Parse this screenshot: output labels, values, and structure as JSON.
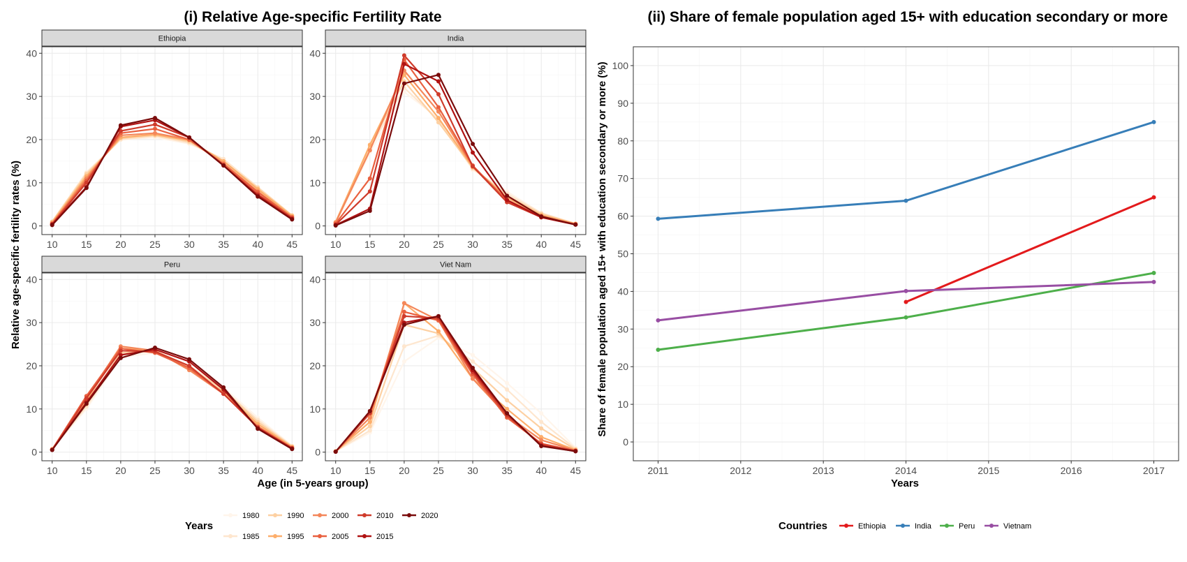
{
  "left": {
    "title": "(i) Relative Age-specific Fertility Rate",
    "xlabel": "Age (in 5-years group)",
    "ylabel": "Relative age-specific fertility rates (%)",
    "legend_title": "Years"
  },
  "right": {
    "title": "(ii) Share of female population aged 15+ with education secondary or more",
    "xlabel": "Years",
    "ylabel": "Share of female population aged 15+ with education secondary or more (%)",
    "legend_title": "Countries"
  },
  "chart_data": [
    {
      "type": "line",
      "facets": [
        "Ethiopia",
        "India",
        "Peru",
        "Viet Nam"
      ],
      "x": [
        10,
        15,
        20,
        25,
        30,
        35,
        40,
        45
      ],
      "xticks": [
        10,
        15,
        20,
        25,
        30,
        35,
        40,
        45
      ],
      "ylim": [
        -2,
        41.5
      ],
      "yticks": [
        0,
        10,
        20,
        30,
        40
      ],
      "grid": true,
      "legend_position": "bottom",
      "series_names": [
        "1980",
        "1985",
        "1990",
        "1995",
        "2000",
        "2005",
        "2010",
        "2015",
        "2020"
      ],
      "series_colors": [
        "#fff5eb",
        "#fee6ce",
        "#fdd0a2",
        "#fdae6b",
        "#f4875a",
        "#e9603f",
        "#cf3b2b",
        "#b01313",
        "#7a0c0c"
      ],
      "data": {
        "Ethiopia": [
          [
            1.0,
            12.5,
            20.0,
            20.5,
            19.0,
            15.5,
            9.0,
            2.5
          ],
          [
            1.0,
            12.3,
            20.0,
            20.8,
            19.2,
            15.5,
            9.0,
            2.5
          ],
          [
            1.0,
            12.0,
            20.3,
            21.0,
            19.5,
            15.0,
            8.8,
            2.4
          ],
          [
            0.8,
            11.5,
            20.5,
            21.2,
            19.8,
            15.0,
            8.5,
            2.3
          ],
          [
            0.6,
            11.0,
            21.0,
            21.5,
            20.0,
            14.5,
            8.0,
            2.0
          ],
          [
            0.5,
            10.5,
            21.5,
            22.5,
            20.0,
            14.3,
            7.8,
            2.0
          ],
          [
            0.4,
            10.0,
            22.0,
            23.5,
            20.5,
            14.0,
            7.3,
            1.8
          ],
          [
            0.3,
            9.0,
            23.0,
            24.5,
            20.5,
            14.0,
            7.0,
            1.6
          ],
          [
            0.2,
            8.8,
            23.3,
            25.0,
            20.5,
            14.0,
            6.8,
            1.5
          ]
        ],
        "India": [
          [
            0.5,
            17.0,
            31.0,
            25.0,
            13.0,
            8.0,
            3.0,
            0.6
          ],
          [
            0.6,
            18.0,
            32.0,
            24.5,
            13.2,
            7.5,
            3.0,
            0.5
          ],
          [
            0.8,
            18.5,
            33.5,
            24.0,
            13.5,
            7.0,
            2.8,
            0.5
          ],
          [
            0.9,
            18.8,
            35.0,
            25.0,
            13.6,
            6.5,
            2.5,
            0.5
          ],
          [
            0.8,
            17.5,
            36.0,
            26.5,
            13.8,
            6.0,
            2.3,
            0.4
          ],
          [
            0.5,
            11.0,
            38.5,
            27.5,
            14.0,
            5.8,
            2.0,
            0.4
          ],
          [
            0.3,
            8.0,
            39.5,
            30.5,
            13.8,
            5.5,
            2.0,
            0.3
          ],
          [
            0.2,
            4.0,
            37.5,
            33.5,
            17.0,
            6.0,
            2.0,
            0.3
          ],
          [
            0.1,
            3.5,
            33.0,
            35.0,
            19.0,
            7.0,
            2.2,
            0.3
          ]
        ],
        "Peru": [
          [
            0.8,
            10.0,
            22.0,
            23.0,
            20.0,
            15.0,
            8.0,
            1.5
          ],
          [
            0.8,
            10.5,
            22.5,
            23.5,
            20.0,
            14.5,
            7.5,
            1.4
          ],
          [
            0.7,
            11.0,
            23.0,
            23.5,
            19.5,
            14.5,
            7.0,
            1.3
          ],
          [
            0.6,
            12.0,
            24.0,
            23.5,
            19.0,
            14.0,
            6.5,
            1.2
          ],
          [
            0.6,
            12.5,
            24.5,
            23.5,
            19.0,
            13.5,
            6.0,
            1.0
          ],
          [
            0.6,
            13.0,
            24.0,
            23.0,
            19.5,
            13.5,
            5.8,
            1.0
          ],
          [
            0.5,
            12.5,
            23.5,
            23.3,
            20.0,
            13.5,
            5.7,
            0.9
          ],
          [
            0.5,
            11.5,
            22.5,
            23.8,
            21.0,
            14.5,
            5.5,
            0.8
          ],
          [
            0.5,
            11.2,
            21.8,
            24.2,
            21.5,
            15.0,
            5.4,
            0.7
          ]
        ],
        "Viet Nam": [
          [
            0.2,
            4.5,
            21.0,
            26.5,
            22.5,
            16.0,
            9.0,
            1.0
          ],
          [
            0.2,
            5.0,
            24.5,
            27.0,
            21.0,
            14.5,
            7.0,
            0.8
          ],
          [
            0.2,
            6.0,
            29.5,
            27.5,
            19.5,
            12.0,
            5.5,
            0.6
          ],
          [
            0.2,
            7.0,
            34.5,
            28.0,
            17.0,
            10.0,
            3.5,
            0.5
          ],
          [
            0.1,
            8.0,
            34.5,
            30.5,
            17.0,
            8.5,
            2.8,
            0.4
          ],
          [
            0.1,
            9.0,
            32.5,
            30.5,
            18.0,
            8.0,
            2.0,
            0.3
          ],
          [
            0.1,
            9.0,
            31.5,
            31.0,
            18.5,
            8.5,
            1.8,
            0.3
          ],
          [
            0.1,
            9.5,
            30.0,
            31.5,
            19.0,
            9.0,
            1.5,
            0.2
          ],
          [
            0.1,
            9.5,
            29.5,
            31.5,
            19.5,
            9.0,
            1.4,
            0.2
          ]
        ]
      }
    },
    {
      "type": "line",
      "x": [
        2011,
        2014,
        2017
      ],
      "xticks": [
        2011,
        2012,
        2013,
        2014,
        2015,
        2016,
        2017
      ],
      "ylim": [
        -5,
        105
      ],
      "yticks": [
        0,
        10,
        20,
        30,
        40,
        50,
        60,
        70,
        80,
        90,
        100
      ],
      "grid": true,
      "legend_position": "bottom",
      "series": [
        {
          "name": "Ethiopia",
          "color": "#e31a1c",
          "values": [
            null,
            37.2,
            65.0
          ]
        },
        {
          "name": "India",
          "color": "#377eb8",
          "values": [
            59.3,
            64.1,
            85.0
          ]
        },
        {
          "name": "Peru",
          "color": "#4daf4a",
          "values": [
            24.5,
            33.1,
            44.9
          ]
        },
        {
          "name": "Vietnam",
          "color": "#984ea3",
          "values": [
            32.3,
            40.1,
            42.5
          ]
        }
      ]
    }
  ]
}
